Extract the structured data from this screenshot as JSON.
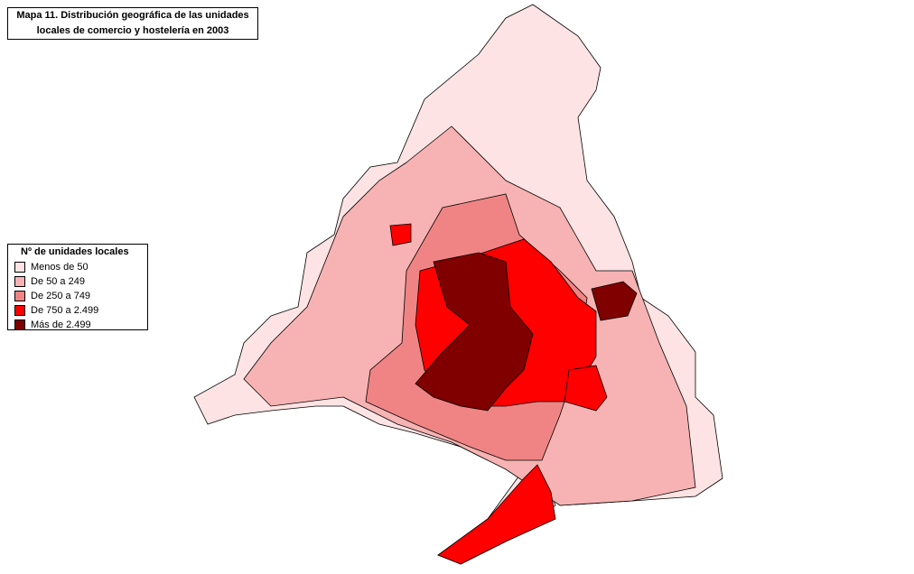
{
  "title": {
    "line1": "Mapa 11. Distribución geográfica de las unidades",
    "line2": "locales de comercio y hostelería en 2003"
  },
  "legend": {
    "title": "Nº de unidades locales",
    "items": [
      {
        "label": "Menos de 50",
        "color": "#fde3e3"
      },
      {
        "label": "De 50 a 249",
        "color": "#f7b3b3"
      },
      {
        "label": "De 250 a 749",
        "color": "#f08484"
      },
      {
        "label": "De 750 a 2.499",
        "color": "#ff0000"
      },
      {
        "label": "Más de 2.499",
        "color": "#800000"
      }
    ]
  }
}
